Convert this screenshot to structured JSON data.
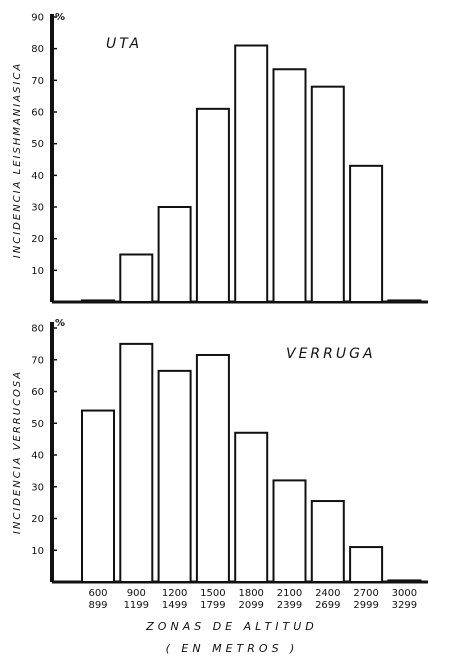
{
  "x_categories": [
    [
      "600",
      "899"
    ],
    [
      "900",
      "1199"
    ],
    [
      "1200",
      "1499"
    ],
    [
      "1500",
      "1799"
    ],
    [
      "1800",
      "2099"
    ],
    [
      "2100",
      "2399"
    ],
    [
      "2400",
      "2699"
    ],
    [
      "2700",
      "2999"
    ],
    [
      "3000",
      "3299"
    ]
  ],
  "x_title": "ZONAS DE ALTITUD",
  "x_subtitle": "( EN METROS )",
  "chart_data": [
    {
      "type": "bar",
      "title": "UTA",
      "ylabel": "INCIDENCIA LEISHMANIASICA",
      "unit": "%",
      "ylim": [
        0,
        90
      ],
      "yticks": [
        10,
        20,
        30,
        40,
        50,
        60,
        70,
        80,
        90
      ],
      "categories": [
        "600-899",
        "900-1199",
        "1200-1499",
        "1500-1799",
        "1800-2099",
        "2100-2399",
        "2400-2699",
        "2700-2999",
        "3000-3299"
      ],
      "values": [
        0.5,
        15,
        30,
        61,
        81,
        73.5,
        68,
        43,
        0.5
      ],
      "grid": false,
      "legend": "none"
    },
    {
      "type": "bar",
      "title": "VERRUGA",
      "ylabel": "INCIDENCIA VERRUCOSA",
      "unit": "%",
      "ylim": [
        0,
        80
      ],
      "yticks": [
        10,
        20,
        30,
        40,
        50,
        60,
        70,
        80
      ],
      "categories": [
        "600-899",
        "900-1199",
        "1200-1499",
        "1500-1799",
        "1800-2099",
        "2100-2399",
        "2400-2699",
        "2700-2999",
        "3000-3299"
      ],
      "values": [
        54,
        75,
        66.5,
        71.5,
        47,
        32,
        25.5,
        11,
        0.5
      ],
      "grid": false,
      "legend": "none"
    }
  ]
}
